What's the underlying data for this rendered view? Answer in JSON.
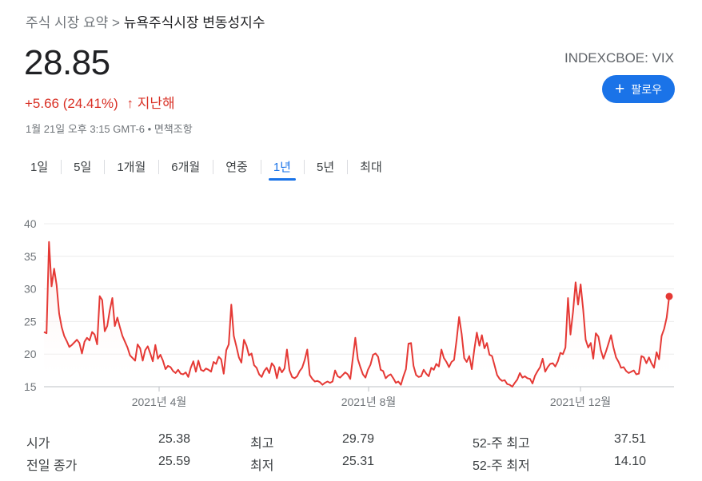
{
  "breadcrumb": {
    "parent": "주식 시장 요약",
    "separator": ">",
    "current": "뉴욕주식시장 변동성지수"
  },
  "quote": {
    "price": "28.85",
    "change": "+5.66 (24.41%)",
    "change_arrow": "↑",
    "period": "지난해",
    "timestamp": "1월 21일 오후 3:15 GMT-6",
    "disclaimer": "면책조항",
    "ticker": "INDEXCBOE: VIX",
    "follow_label": "팔로우",
    "follow_icon": "plus-icon"
  },
  "tabs": [
    "1일",
    "5일",
    "1개월",
    "6개월",
    "연중",
    "1년",
    "5년",
    "최대"
  ],
  "active_tab": "1년",
  "colors": {
    "line": "#e53935",
    "fill": "#fce8e6",
    "accent": "#1a73e8",
    "negative": "#d93025"
  },
  "chart_data": {
    "type": "area",
    "y_ticks": [
      "40",
      "35",
      "30",
      "25",
      "20",
      "15"
    ],
    "ylim": [
      15,
      40
    ],
    "x_ticks": [
      "2021년 4월",
      "2021년 8월",
      "2021년 12월"
    ],
    "series": [
      {
        "values": [
          23.4,
          23.2,
          37.2,
          30.4,
          33.1,
          30.6,
          26.2,
          24.1,
          22.8,
          22.0,
          21.1,
          21.4,
          21.8,
          22.2,
          21.7,
          20.1,
          21.9,
          22.5,
          22.1,
          23.4,
          23.0,
          21.5,
          28.9,
          28.3,
          23.5,
          24.3,
          26.7,
          28.6,
          24.3,
          25.6,
          24.1,
          22.8,
          21.9,
          21.0,
          19.8,
          19.4,
          19.0,
          21.5,
          20.9,
          19.0,
          20.6,
          21.2,
          20.1,
          18.9,
          21.4,
          19.3,
          19.9,
          19.0,
          17.7,
          18.2,
          18.0,
          17.4,
          17.1,
          17.6,
          17.0,
          16.9,
          17.2,
          16.5,
          17.9,
          18.9,
          17.3,
          19.0,
          17.6,
          17.4,
          17.8,
          17.6,
          17.3,
          18.8,
          18.5,
          19.6,
          19.2,
          17.0,
          20.6,
          21.5,
          27.6,
          22.8,
          21.2,
          19.5,
          18.7,
          22.2,
          21.3,
          19.8,
          20.1,
          18.3,
          17.9,
          16.9,
          16.5,
          17.4,
          17.9,
          17.1,
          18.6,
          18.1,
          16.3,
          18.0,
          17.2,
          17.8,
          20.7,
          17.5,
          16.5,
          16.3,
          16.6,
          17.4,
          17.9,
          19.1,
          20.7,
          16.8,
          16.2,
          15.8,
          15.9,
          15.7,
          15.3,
          15.6,
          15.8,
          15.6,
          15.8,
          17.5,
          16.6,
          16.4,
          16.8,
          17.2,
          16.9,
          16.2,
          19.4,
          22.5,
          19.2,
          18.0,
          16.9,
          16.4,
          17.6,
          18.4,
          19.9,
          20.1,
          19.6,
          17.6,
          17.4,
          16.3,
          16.7,
          16.9,
          16.3,
          15.6,
          15.8,
          15.3,
          16.6,
          17.7,
          21.6,
          21.7,
          18.2,
          16.8,
          16.5,
          16.6,
          17.6,
          17.0,
          16.6,
          17.9,
          17.6,
          18.5,
          18.1,
          20.7,
          19.4,
          18.8,
          18.0,
          18.8,
          19.1,
          22.2,
          25.7,
          23.1,
          19.4,
          18.8,
          19.7,
          17.7,
          20.7,
          23.3,
          21.3,
          22.9,
          20.9,
          21.7,
          19.9,
          19.7,
          18.3,
          16.8,
          16.2,
          15.9,
          16.0,
          15.4,
          15.3,
          15.0,
          15.6,
          16.1,
          17.1,
          16.4,
          16.6,
          16.3,
          16.2,
          15.5,
          16.7,
          17.4,
          18.0,
          19.3,
          17.3,
          18.0,
          18.5,
          18.6,
          18.1,
          18.9,
          20.2,
          20.0,
          21.0,
          28.6,
          23.0,
          26.5,
          31.0,
          27.6,
          30.7,
          26.8,
          22.2,
          21.0,
          21.7,
          19.3,
          23.2,
          22.7,
          20.6,
          19.3,
          20.4,
          21.6,
          22.9,
          21.0,
          19.5,
          18.8,
          17.9,
          18.0,
          17.4,
          17.1,
          17.3,
          17.5,
          16.9,
          17.0,
          19.7,
          19.5,
          18.6,
          19.5,
          18.6,
          17.9,
          20.3,
          19.2,
          22.8,
          23.9,
          25.6,
          28.85
        ]
      }
    ]
  },
  "stats": {
    "left": [
      {
        "label": "시가",
        "value": "25.38"
      },
      {
        "label": "전일 종가",
        "value": "25.59"
      }
    ],
    "middle": [
      {
        "label": "최고",
        "value": "29.79"
      },
      {
        "label": "최저",
        "value": "25.31"
      }
    ],
    "right": [
      {
        "label": "52-주 최고",
        "value": "37.51"
      },
      {
        "label": "52-주 최저",
        "value": "14.10"
      }
    ]
  }
}
